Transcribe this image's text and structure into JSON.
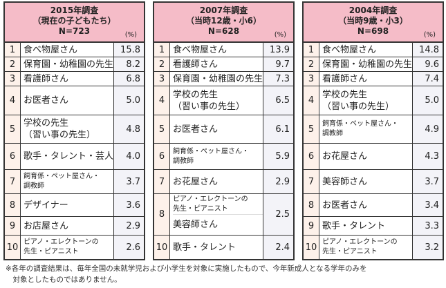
{
  "tables": [
    {
      "title": "2015年調査",
      "subtitle": "（現在の子どもたち）",
      "n": "N=723",
      "unit": "(%)",
      "rows": [
        {
          "rank": "1",
          "label": [
            "食べ物屋さん"
          ],
          "value": "15.8"
        },
        {
          "rank": "2",
          "label": [
            "保育園・幼稚園の先生"
          ],
          "value": "8.2"
        },
        {
          "rank": "3",
          "label": [
            "看護師さん"
          ],
          "value": "6.8"
        },
        {
          "rank": "4",
          "label": [
            "お医者さん"
          ],
          "value": "5.0"
        },
        {
          "rank": "5",
          "label": [
            "学校の先生",
            "（習い事の先生）"
          ],
          "value": "4.8"
        },
        {
          "rank": "6",
          "label": [
            "歌手・タレント・芸人"
          ],
          "value": "4.0"
        },
        {
          "rank": "7",
          "label": [
            "飼育係・ペット屋さん・",
            "調教師"
          ],
          "small": true,
          "value": "3.7"
        },
        {
          "rank": "8",
          "label": [
            "デザイナー"
          ],
          "value": "3.6"
        },
        {
          "rank": "9",
          "label": [
            "お店屋さん"
          ],
          "value": "2.9"
        },
        {
          "rank": "10",
          "label": [
            "ピアノ・エレクトーンの",
            "先生・ピアニスト"
          ],
          "small": true,
          "value": "2.6"
        }
      ]
    },
    {
      "title": "2007年調査",
      "subtitle": "（当時12歳・小6）",
      "n": "N=628",
      "unit": "(%)",
      "rows": [
        {
          "rank": "1",
          "label": [
            "食べ物屋さん"
          ],
          "value": "13.9"
        },
        {
          "rank": "2",
          "label": [
            "看護師さん"
          ],
          "value": "9.7"
        },
        {
          "rank": "3",
          "label": [
            "保育園・幼稚園の先生"
          ],
          "value": "7.3"
        },
        {
          "rank": "4",
          "label": [
            "学校の先生",
            "（習い事の先生）"
          ],
          "value": "6.5"
        },
        {
          "rank": "5",
          "label": [
            "お医者さん"
          ],
          "value": "6.1"
        },
        {
          "rank": "6",
          "label": [
            "飼育係・ペット屋さん・",
            "調教師"
          ],
          "small": true,
          "value": "5.9"
        },
        {
          "rank": "7",
          "label": [
            "お花屋さん"
          ],
          "value": "2.9"
        },
        {
          "rank": "8",
          "split": [
            [
              "ピアノ・エレクトーンの",
              "先生・ピアニスト"
            ],
            [
              "美容師さん"
            ]
          ],
          "value": "2.5"
        },
        {
          "rank": "10",
          "label": [
            "歌手・タレント"
          ],
          "value": "2.4"
        }
      ]
    },
    {
      "title": "2004年調査",
      "subtitle": "（当時9歳・小3）",
      "n": "N=698",
      "unit": "(%)",
      "rows": [
        {
          "rank": "1",
          "label": [
            "食べ物屋さん"
          ],
          "value": "14.8"
        },
        {
          "rank": "2",
          "label": [
            "保育園・幼稚園の先生"
          ],
          "value": "9.6"
        },
        {
          "rank": "3",
          "label": [
            "看護師さん"
          ],
          "value": "7.4"
        },
        {
          "rank": "4",
          "label": [
            "学校の先生",
            "（習い事の先生）"
          ],
          "value": "5.0"
        },
        {
          "rank": "5",
          "label": [
            "飼育係・ペット屋さん・",
            "調教師"
          ],
          "small": true,
          "value": "4.9"
        },
        {
          "rank": "6",
          "label": [
            "お花屋さん"
          ],
          "value": "4.3"
        },
        {
          "rank": "7",
          "label": [
            "美容師さん"
          ],
          "value": "3.7"
        },
        {
          "rank": "8",
          "label": [
            "お医者さん"
          ],
          "value": "3.4"
        },
        {
          "rank": "9",
          "label": [
            "歌手・タレント"
          ],
          "value": "3.3"
        },
        {
          "rank": "10",
          "label": [
            "ピアノ・エレクトーンの",
            "先生・ピアニスト"
          ],
          "small": true,
          "value": "3.2"
        }
      ]
    }
  ],
  "note": [
    "※各年の調査結果は、毎年全国の未就学児および小学生を対象に実施したもので、今年新成人となる学年のみを",
    "　対象としたものではありません。"
  ],
  "colors": {
    "header": "#f5bcc8",
    "rank_col": "#fdf1ea",
    "value_col": "#f3f3f8"
  }
}
